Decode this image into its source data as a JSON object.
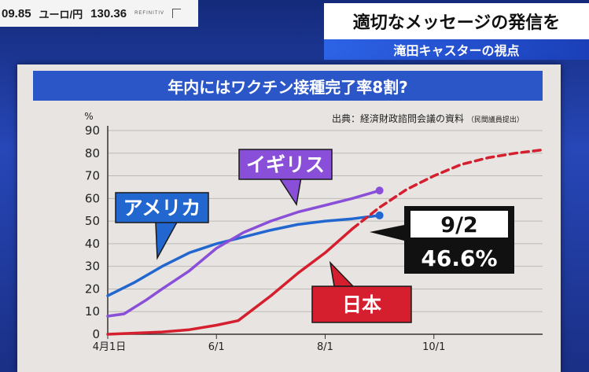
{
  "ticker": {
    "prev_value": "09.85",
    "pair_label": "ユーロ/円",
    "pair_value": "130.36",
    "source": "REFINITIV"
  },
  "broadcast": {
    "headline": "適切なメッセージの発信を",
    "segment": "滝田キャスターの視点"
  },
  "chart_data": {
    "type": "line",
    "title": "年内にはワクチン接種完了率8割?",
    "source": "出典：経済財政諮問会議の資料",
    "source_note": "（民間議員提出）",
    "ylabel": "%",
    "ylim": [
      0,
      90
    ],
    "yticks": [
      0,
      10,
      20,
      30,
      40,
      50,
      60,
      70,
      80,
      90
    ],
    "xticks": [
      {
        "label": "4月1日",
        "month": 0
      },
      {
        "label": "6/1",
        "month": 2
      },
      {
        "label": "8/1",
        "month": 4
      },
      {
        "label": "10/1",
        "month": 6
      }
    ],
    "grid": true,
    "colors": {
      "us": "#2266d0",
      "uk": "#8a4fd8",
      "jp": "#d51f2e"
    },
    "series": [
      {
        "name": "アメリカ",
        "key": "us",
        "x": [
          0,
          0.5,
          1,
          1.5,
          2,
          2.5,
          3,
          3.5,
          4,
          4.5,
          5.0
        ],
        "y": [
          17,
          23,
          30,
          36,
          40,
          43,
          46,
          48.5,
          50,
          51,
          52.5
        ],
        "endpoint": true
      },
      {
        "name": "イギリス",
        "key": "uk",
        "x": [
          0,
          0.3,
          0.7,
          1.0,
          1.5,
          2.0,
          2.5,
          3.0,
          3.5,
          4.0,
          4.5,
          5.0
        ],
        "y": [
          8,
          9,
          15,
          20,
          28,
          38,
          45,
          50,
          54,
          57,
          60,
          63.5
        ],
        "endpoint": true
      },
      {
        "name": "日本",
        "key": "jp",
        "x": [
          0,
          1.0,
          1.5,
          2.0,
          2.4,
          3.0,
          3.5,
          4.0,
          4.5
        ],
        "y": [
          0,
          1,
          2,
          4,
          6,
          17,
          27,
          36,
          46.6
        ],
        "endpoint": false
      },
      {
        "name": "日本（予測）",
        "key": "jp",
        "dashed": true,
        "x": [
          4.5,
          5.0,
          5.5,
          6.0,
          6.5,
          7.0,
          7.5,
          8.0
        ],
        "y": [
          46.6,
          56,
          64,
          70,
          75,
          78,
          80,
          81.5
        ],
        "endpoint": false
      }
    ],
    "callouts": [
      {
        "label": "アメリカ",
        "key": "us"
      },
      {
        "label": "イギリス",
        "key": "uk"
      },
      {
        "label": "日本",
        "key": "jp"
      },
      {
        "date": "9/2",
        "value": "46.6%"
      }
    ]
  }
}
